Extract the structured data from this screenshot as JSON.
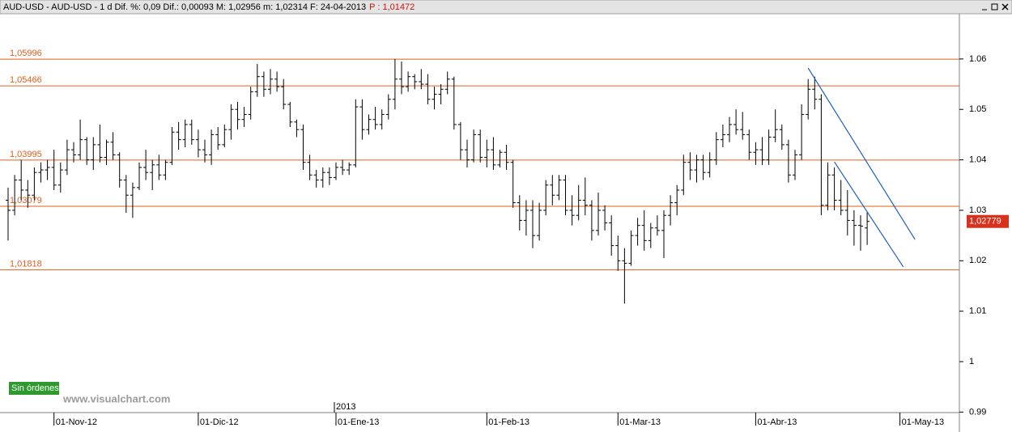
{
  "chart_data": {
    "type": "ohlc",
    "header_text": "AUD-USD - AUD-USD - 1 d Dif. %: 0,09 Dif.: 0,00093 M: 1,02956 m: 1,02314 F: 24-04-2013",
    "header_price": "P : 1,01472",
    "bar_color": "#000000",
    "ylim": [
      0.9899,
      1.0688
    ],
    "yticks": [
      0.99,
      1,
      1.01,
      1.02,
      1.03,
      1.04,
      1.05,
      1.06
    ],
    "categories": [
      null,
      null,
      null,
      null,
      null,
      null,
      null,
      "01-Nov-12",
      null,
      null,
      null,
      null,
      null,
      null,
      null,
      null,
      null,
      null,
      null,
      null,
      null,
      null,
      null,
      null,
      null,
      null,
      null,
      null,
      null,
      "01-Dic-12",
      null,
      null,
      null,
      null,
      null,
      null,
      null,
      null,
      null,
      null,
      null,
      null,
      null,
      null,
      null,
      null,
      null,
      null,
      null,
      null,
      "01-Ene-13",
      null,
      null,
      null,
      null,
      null,
      null,
      null,
      null,
      null,
      null,
      null,
      null,
      null,
      null,
      null,
      null,
      null,
      null,
      null,
      null,
      null,
      null,
      "01-Feb-13",
      null,
      null,
      null,
      null,
      null,
      null,
      null,
      null,
      null,
      null,
      null,
      null,
      null,
      null,
      null,
      null,
      null,
      null,
      null,
      "01-Mar-13",
      null,
      null,
      null,
      null,
      null,
      null,
      null,
      null,
      null,
      null,
      null,
      null,
      null,
      null,
      null,
      null,
      null,
      null,
      null,
      null,
      "01-Abr-13",
      null,
      null,
      null,
      null,
      null,
      null,
      null,
      null,
      null,
      null,
      null,
      null,
      null,
      null,
      null,
      null,
      null,
      null,
      null,
      null,
      null,
      "01-May-13",
      null,
      null,
      null,
      null,
      null,
      null,
      null,
      null
    ],
    "open": [
      1.032,
      1.03,
      1.036,
      1.034,
      1.033,
      1.0375,
      1.038,
      1.0385,
      1.035,
      1.038,
      1.042,
      1.041,
      1.044,
      1.04,
      1.043,
      1.0405,
      1.0435,
      1.041,
      1.036,
      1.033,
      1.0345,
      1.0385,
      1.0375,
      1.039,
      1.037,
      1.0395,
      1.0455,
      1.044,
      1.047,
      1.044,
      1.042,
      1.041,
      1.045,
      1.043,
      1.046,
      1.05,
      1.048,
      1.049,
      1.0535,
      1.0565,
      1.054,
      1.056,
      1.0545,
      1.051,
      1.0475,
      1.046,
      1.0395,
      1.037,
      1.036,
      1.0375,
      1.0365,
      1.0385,
      1.038,
      1.039,
      1.0505,
      1.046,
      1.048,
      1.047,
      1.049,
      1.052,
      1.056,
      1.0545,
      1.0565,
      1.0555,
      1.055,
      1.052,
      1.053,
      1.054,
      1.056,
      1.047,
      1.042,
      1.04,
      1.045,
      1.0405,
      1.042,
      1.039,
      1.0415,
      1.0395,
      1.0315,
      1.028,
      1.03,
      1.025,
      1.03,
      1.035,
      1.033,
      1.036,
      1.03,
      1.029,
      1.032,
      1.031,
      1.026,
      1.03,
      1.0275,
      1.023,
      1.02,
      1.0195,
      1.025,
      1.027,
      1.024,
      1.0265,
      1.026,
      1.029,
      1.0315,
      1.034,
      1.0395,
      1.038,
      1.04,
      1.0375,
      1.04,
      1.044,
      1.045,
      1.047,
      1.046,
      1.045,
      1.0415,
      1.042,
      1.04,
      1.0445,
      1.046,
      1.043,
      1.037,
      1.041,
      1.049,
      1.054,
      1.052,
      1.031,
      1.037,
      1.032,
      1.03,
      1.028,
      1.027,
      1.0265,
      null,
      null,
      null,
      null,
      null,
      null,
      null,
      null,
      null,
      null,
      null,
      null,
      null
    ],
    "high": [
      1.0345,
      1.037,
      1.04,
      1.036,
      1.0385,
      1.0395,
      1.04,
      1.042,
      1.0395,
      1.044,
      1.0435,
      1.048,
      1.0445,
      1.0445,
      1.047,
      1.044,
      1.0455,
      1.0415,
      1.037,
      1.0355,
      1.0395,
      1.042,
      1.04,
      1.041,
      1.04,
      1.0465,
      1.0475,
      1.048,
      1.048,
      1.046,
      1.044,
      1.046,
      1.0465,
      1.047,
      1.051,
      1.0515,
      1.0505,
      1.0545,
      1.059,
      1.0575,
      1.058,
      1.0575,
      1.056,
      1.0515,
      1.048,
      1.047,
      1.041,
      1.038,
      1.0385,
      1.0385,
      1.0395,
      1.04,
      1.0395,
      1.052,
      1.052,
      1.049,
      1.0505,
      1.05,
      1.053,
      1.06,
      1.0595,
      1.0575,
      1.057,
      1.058,
      1.057,
      1.0545,
      1.055,
      1.0575,
      1.0565,
      1.0475,
      1.044,
      1.046,
      1.046,
      1.044,
      1.0445,
      1.042,
      1.043,
      1.04,
      1.033,
      1.032,
      1.032,
      1.0315,
      1.036,
      1.037,
      1.037,
      1.037,
      1.033,
      1.035,
      1.0365,
      1.032,
      1.0335,
      1.031,
      1.029,
      1.025,
      1.0225,
      1.026,
      1.0285,
      1.03,
      1.0275,
      1.029,
      1.03,
      1.033,
      1.035,
      1.041,
      1.0415,
      1.041,
      1.041,
      1.0415,
      1.0455,
      1.047,
      1.0485,
      1.05,
      1.0495,
      1.046,
      1.0435,
      1.0445,
      1.046,
      1.05,
      1.047,
      1.044,
      1.042,
      1.051,
      1.056,
      1.0565,
      1.053,
      1.0395,
      1.0385,
      1.036,
      1.034,
      1.03,
      1.029,
      1.02956,
      null,
      null,
      null,
      null,
      null,
      null,
      null,
      null,
      null,
      null,
      null,
      null,
      null
    ],
    "low": [
      1.024,
      1.029,
      1.032,
      1.0305,
      1.032,
      1.0355,
      1.036,
      1.034,
      1.0335,
      1.037,
      1.0395,
      1.04,
      1.039,
      1.038,
      1.0395,
      1.039,
      1.04,
      1.0345,
      1.0295,
      1.0285,
      1.034,
      1.036,
      1.034,
      1.036,
      1.036,
      1.039,
      1.042,
      1.0425,
      1.043,
      1.0405,
      1.0395,
      1.039,
      1.042,
      1.0425,
      1.044,
      1.046,
      1.0465,
      1.048,
      1.0525,
      1.0525,
      1.053,
      1.0535,
      1.05,
      1.0465,
      1.0445,
      1.038,
      1.036,
      1.0345,
      1.0345,
      1.035,
      1.036,
      1.037,
      1.037,
      1.0385,
      1.044,
      1.045,
      1.046,
      1.046,
      1.048,
      1.05,
      1.053,
      1.0535,
      1.054,
      1.054,
      1.051,
      1.05,
      1.051,
      1.053,
      1.046,
      1.04,
      1.0385,
      1.0395,
      1.0395,
      1.0385,
      1.038,
      1.0385,
      1.038,
      1.0305,
      1.026,
      1.025,
      1.0225,
      1.024,
      1.029,
      1.031,
      1.032,
      1.029,
      1.027,
      1.028,
      1.029,
      1.024,
      1.025,
      1.026,
      1.021,
      1.018,
      1.0115,
      1.019,
      1.023,
      1.022,
      1.0225,
      1.025,
      1.0205,
      1.027,
      1.029,
      1.033,
      1.036,
      1.0355,
      1.036,
      1.0365,
      1.039,
      1.0425,
      1.0435,
      1.045,
      1.044,
      1.04,
      1.039,
      1.039,
      1.039,
      1.0435,
      1.042,
      1.0355,
      1.036,
      1.04,
      1.048,
      1.05,
      1.029,
      1.03,
      1.03,
      1.029,
      1.025,
      1.023,
      1.022,
      1.02314,
      null,
      null,
      null,
      null,
      null,
      null,
      null,
      null,
      null,
      null,
      null,
      null,
      null
    ],
    "close": [
      1.03,
      1.036,
      1.034,
      1.033,
      1.0375,
      1.038,
      1.0385,
      1.035,
      1.038,
      1.042,
      1.041,
      1.044,
      1.04,
      1.043,
      1.0405,
      1.0435,
      1.041,
      1.036,
      1.033,
      1.0345,
      1.0385,
      1.0375,
      1.039,
      1.037,
      1.0395,
      1.0455,
      1.044,
      1.047,
      1.044,
      1.042,
      1.041,
      1.045,
      1.043,
      1.046,
      1.05,
      1.048,
      1.049,
      1.0535,
      1.0565,
      1.054,
      1.056,
      1.0545,
      1.051,
      1.0475,
      1.046,
      1.0395,
      1.037,
      1.036,
      1.0375,
      1.0365,
      1.0385,
      1.038,
      1.039,
      1.0505,
      1.046,
      1.048,
      1.047,
      1.049,
      1.052,
      1.056,
      1.0545,
      1.0565,
      1.0555,
      1.055,
      1.052,
      1.053,
      1.054,
      1.056,
      1.047,
      1.042,
      1.04,
      1.045,
      1.0405,
      1.042,
      1.039,
      1.0415,
      1.0395,
      1.0315,
      1.028,
      1.03,
      1.025,
      1.03,
      1.035,
      1.033,
      1.036,
      1.03,
      1.029,
      1.032,
      1.031,
      1.026,
      1.03,
      1.0275,
      1.023,
      1.02,
      1.0195,
      1.025,
      1.027,
      1.024,
      1.0265,
      1.026,
      1.029,
      1.0315,
      1.034,
      1.0395,
      1.038,
      1.04,
      1.0375,
      1.04,
      1.044,
      1.045,
      1.047,
      1.046,
      1.045,
      1.0415,
      1.042,
      1.04,
      1.0445,
      1.046,
      1.043,
      1.037,
      1.041,
      1.049,
      1.054,
      1.052,
      1.031,
      1.037,
      1.032,
      1.03,
      1.028,
      1.027,
      1.02686,
      1.02779,
      null,
      null,
      null,
      null,
      null,
      null,
      null,
      null,
      null,
      null,
      null,
      null,
      null
    ],
    "last_price_label": "1,02779",
    "levels_color": "#e0601e",
    "levels": [
      {
        "value": 1.05996,
        "label": "1,05996"
      },
      {
        "value": 1.05466,
        "label": "1,05466"
      },
      {
        "value": 1.03995,
        "label": "1,03995"
      },
      {
        "value": 1.03079,
        "label": "1,03079"
      },
      {
        "value": 1.01818,
        "label": "1,01818"
      }
    ],
    "trendlines": [
      {
        "color": "#1e5fc0",
        "x": [
          122,
          138.3
        ],
        "y": [
          1.0582,
          1.0242
        ]
      },
      {
        "color": "#1e5fc0",
        "x": [
          126,
          136.5
        ],
        "y": [
          1.0396,
          1.0188
        ]
      }
    ],
    "year_label": "2013",
    "orders_label": "Sin órdenes",
    "watermark": "www.visualchart.com"
  }
}
